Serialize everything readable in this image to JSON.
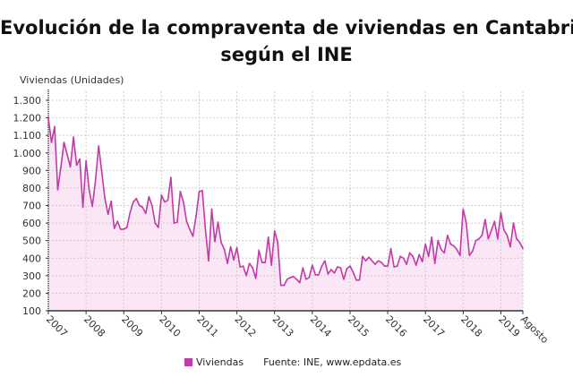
{
  "title_lines": [
    "Evolución de la compraventa de viviendas en Cantabria,",
    "según el INE"
  ],
  "source": "Fuente: INE, www.epdata.es",
  "chart_data": {
    "type": "area",
    "ylabel": "Viviendas (Unidades)",
    "ylim": [
      100,
      1300
    ],
    "yticks": [
      100,
      200,
      300,
      400,
      500,
      600,
      700,
      800,
      900,
      1000,
      1100,
      1200,
      1300
    ],
    "ytick_labels": [
      "100",
      "200",
      "300",
      "400",
      "500",
      "600",
      "700",
      "800",
      "900",
      "1.000",
      "1.100",
      "1.200",
      "1.300"
    ],
    "xtick_labels": [
      "2007",
      "2008",
      "2009",
      "2010",
      "2011",
      "2012",
      "2013",
      "2014",
      "2015",
      "2016",
      "2017",
      "2018",
      "2019",
      "Agosto"
    ],
    "x_start": "2007-01",
    "x_end": "2019-08",
    "frequency": "monthly",
    "grid": true,
    "legend_position": "bottom",
    "series": [
      {
        "name": "Viviendas",
        "color": "#c23aa8",
        "fill": "#fbe6f5",
        "values": [
          1200,
          1060,
          1150,
          790,
          920,
          1060,
          990,
          920,
          1090,
          930,
          965,
          690,
          955,
          790,
          695,
          840,
          1040,
          890,
          740,
          650,
          725,
          570,
          610,
          565,
          565,
          575,
          660,
          720,
          740,
          700,
          690,
          655,
          750,
          700,
          600,
          575,
          760,
          720,
          730,
          860,
          600,
          605,
          780,
          720,
          610,
          565,
          525,
          640,
          780,
          785,
          560,
          385,
          680,
          495,
          605,
          490,
          450,
          370,
          465,
          390,
          460,
          350,
          355,
          300,
          370,
          345,
          285,
          445,
          375,
          375,
          520,
          360,
          555,
          490,
          245,
          245,
          280,
          290,
          295,
          280,
          260,
          345,
          280,
          290,
          360,
          305,
          305,
          355,
          385,
          310,
          335,
          315,
          350,
          345,
          280,
          340,
          355,
          320,
          275,
          275,
          410,
          385,
          405,
          385,
          365,
          385,
          375,
          355,
          355,
          455,
          350,
          355,
          410,
          400,
          365,
          430,
          410,
          360,
          420,
          380,
          480,
          410,
          520,
          370,
          500,
          450,
          430,
          530,
          480,
          470,
          450,
          415,
          680,
          600,
          415,
          440,
          500,
          510,
          530,
          620,
          510,
          560,
          610,
          510,
          660,
          560,
          530,
          465,
          600,
          510,
          490,
          455
        ]
      }
    ]
  }
}
